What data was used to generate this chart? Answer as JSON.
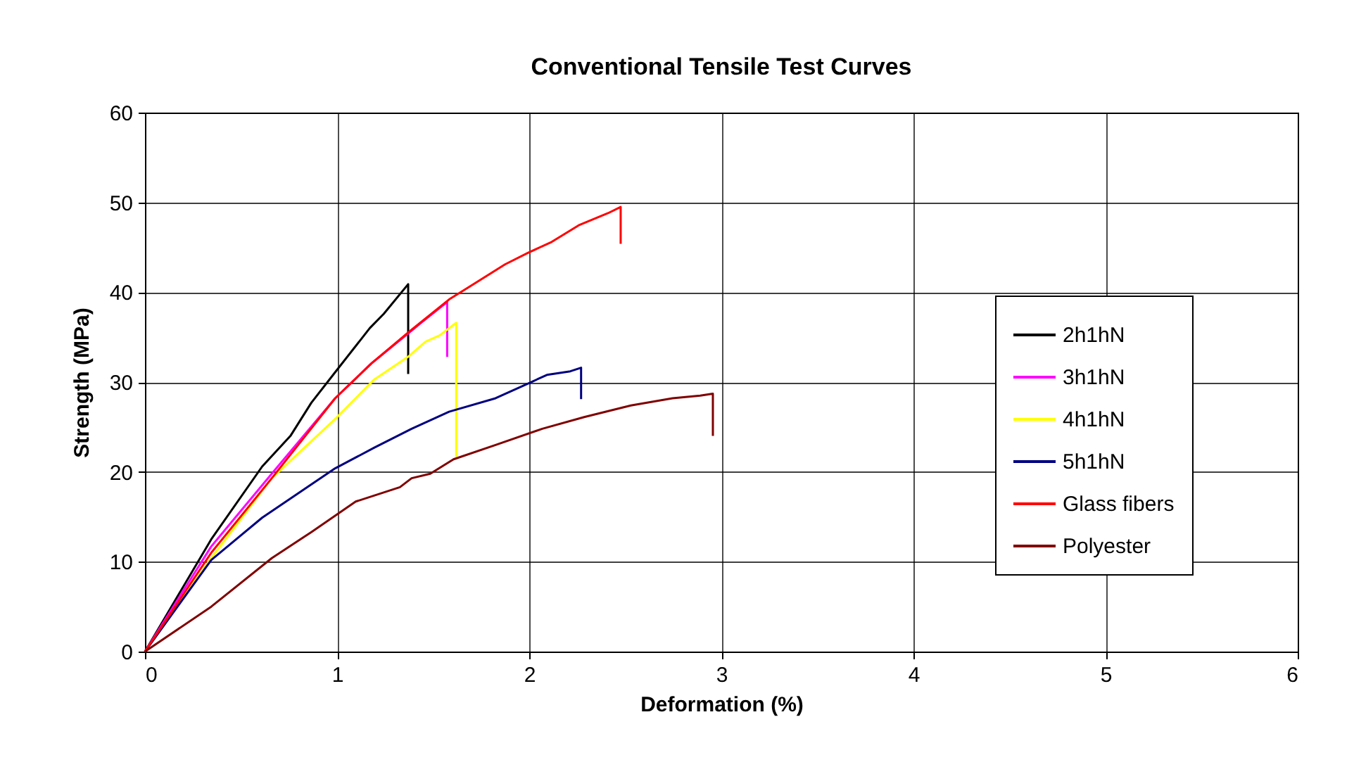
{
  "chart_data": {
    "type": "line",
    "title": "Conventional Tensile Test Curves",
    "xlabel": "Deformation (%)",
    "ylabel": "Strength (MPa)",
    "xlim": [
      0,
      6
    ],
    "ylim": [
      0,
      60
    ],
    "xticks": [
      0,
      1,
      2,
      3,
      4,
      5,
      6
    ],
    "yticks": [
      0,
      10,
      20,
      30,
      40,
      50,
      60
    ],
    "grid": true,
    "legend": "right",
    "marker": "none",
    "line_style": "solid",
    "series": [
      {
        "name": "2h1hN",
        "color": "#000000",
        "x": [
          0,
          0.345,
          0.61,
          0.757,
          0.866,
          0.99,
          1.17,
          1.243,
          1.37,
          1.37
        ],
        "values": [
          0,
          12.5,
          20.6,
          24.0,
          27.7,
          31.1,
          36.0,
          37.6,
          40.9,
          30.9
        ]
      },
      {
        "name": "3h1hN",
        "color": "#ff00ff",
        "x": [
          0,
          0.345,
          0.66,
          0.99,
          1.18,
          1.375,
          1.437,
          1.573,
          1.573
        ],
        "values": [
          0,
          11.7,
          19.8,
          28.2,
          32.1,
          35.5,
          36.6,
          38.9,
          32.8
        ]
      },
      {
        "name": "4h1hN",
        "color": "#ffff00",
        "x": [
          0,
          0.345,
          0.66,
          1.0,
          1.194,
          1.375,
          1.46,
          1.534,
          1.62,
          1.62
        ],
        "values": [
          0,
          10.4,
          19.3,
          26.1,
          30.3,
          32.9,
          34.5,
          35.2,
          36.6,
          21.7
        ]
      },
      {
        "name": "5h1hN",
        "color": "#000080",
        "x": [
          0,
          0.345,
          0.61,
          0.99,
          1.194,
          1.388,
          1.583,
          1.825,
          2.0,
          2.092,
          2.214,
          2.27,
          2.27
        ],
        "values": [
          0,
          10.2,
          14.9,
          20.4,
          22.7,
          24.8,
          26.7,
          28.2,
          29.9,
          30.8,
          31.2,
          31.6,
          28.1
        ]
      },
      {
        "name": "Glass fibers",
        "color": "#ff0000",
        "x": [
          0,
          0.345,
          0.66,
          0.99,
          1.18,
          1.375,
          1.583,
          1.68,
          1.874,
          1.995,
          2.117,
          2.262,
          2.41,
          2.476,
          2.476
        ],
        "values": [
          0,
          11.0,
          19.3,
          28.2,
          32.1,
          35.6,
          39.2,
          40.5,
          43.1,
          44.4,
          45.6,
          47.5,
          48.8,
          49.5,
          45.4
        ]
      },
      {
        "name": "Polyester",
        "color": "#800000",
        "x": [
          0,
          0.345,
          0.66,
          0.866,
          1.097,
          1.327,
          1.388,
          1.485,
          1.606,
          1.825,
          2.068,
          2.286,
          2.529,
          2.746,
          2.89,
          2.956,
          2.956
        ],
        "values": [
          0,
          5.0,
          10.4,
          13.3,
          16.7,
          18.3,
          19.3,
          19.8,
          21.4,
          23.0,
          24.8,
          26.1,
          27.4,
          28.2,
          28.5,
          28.7,
          24.0
        ]
      }
    ]
  }
}
